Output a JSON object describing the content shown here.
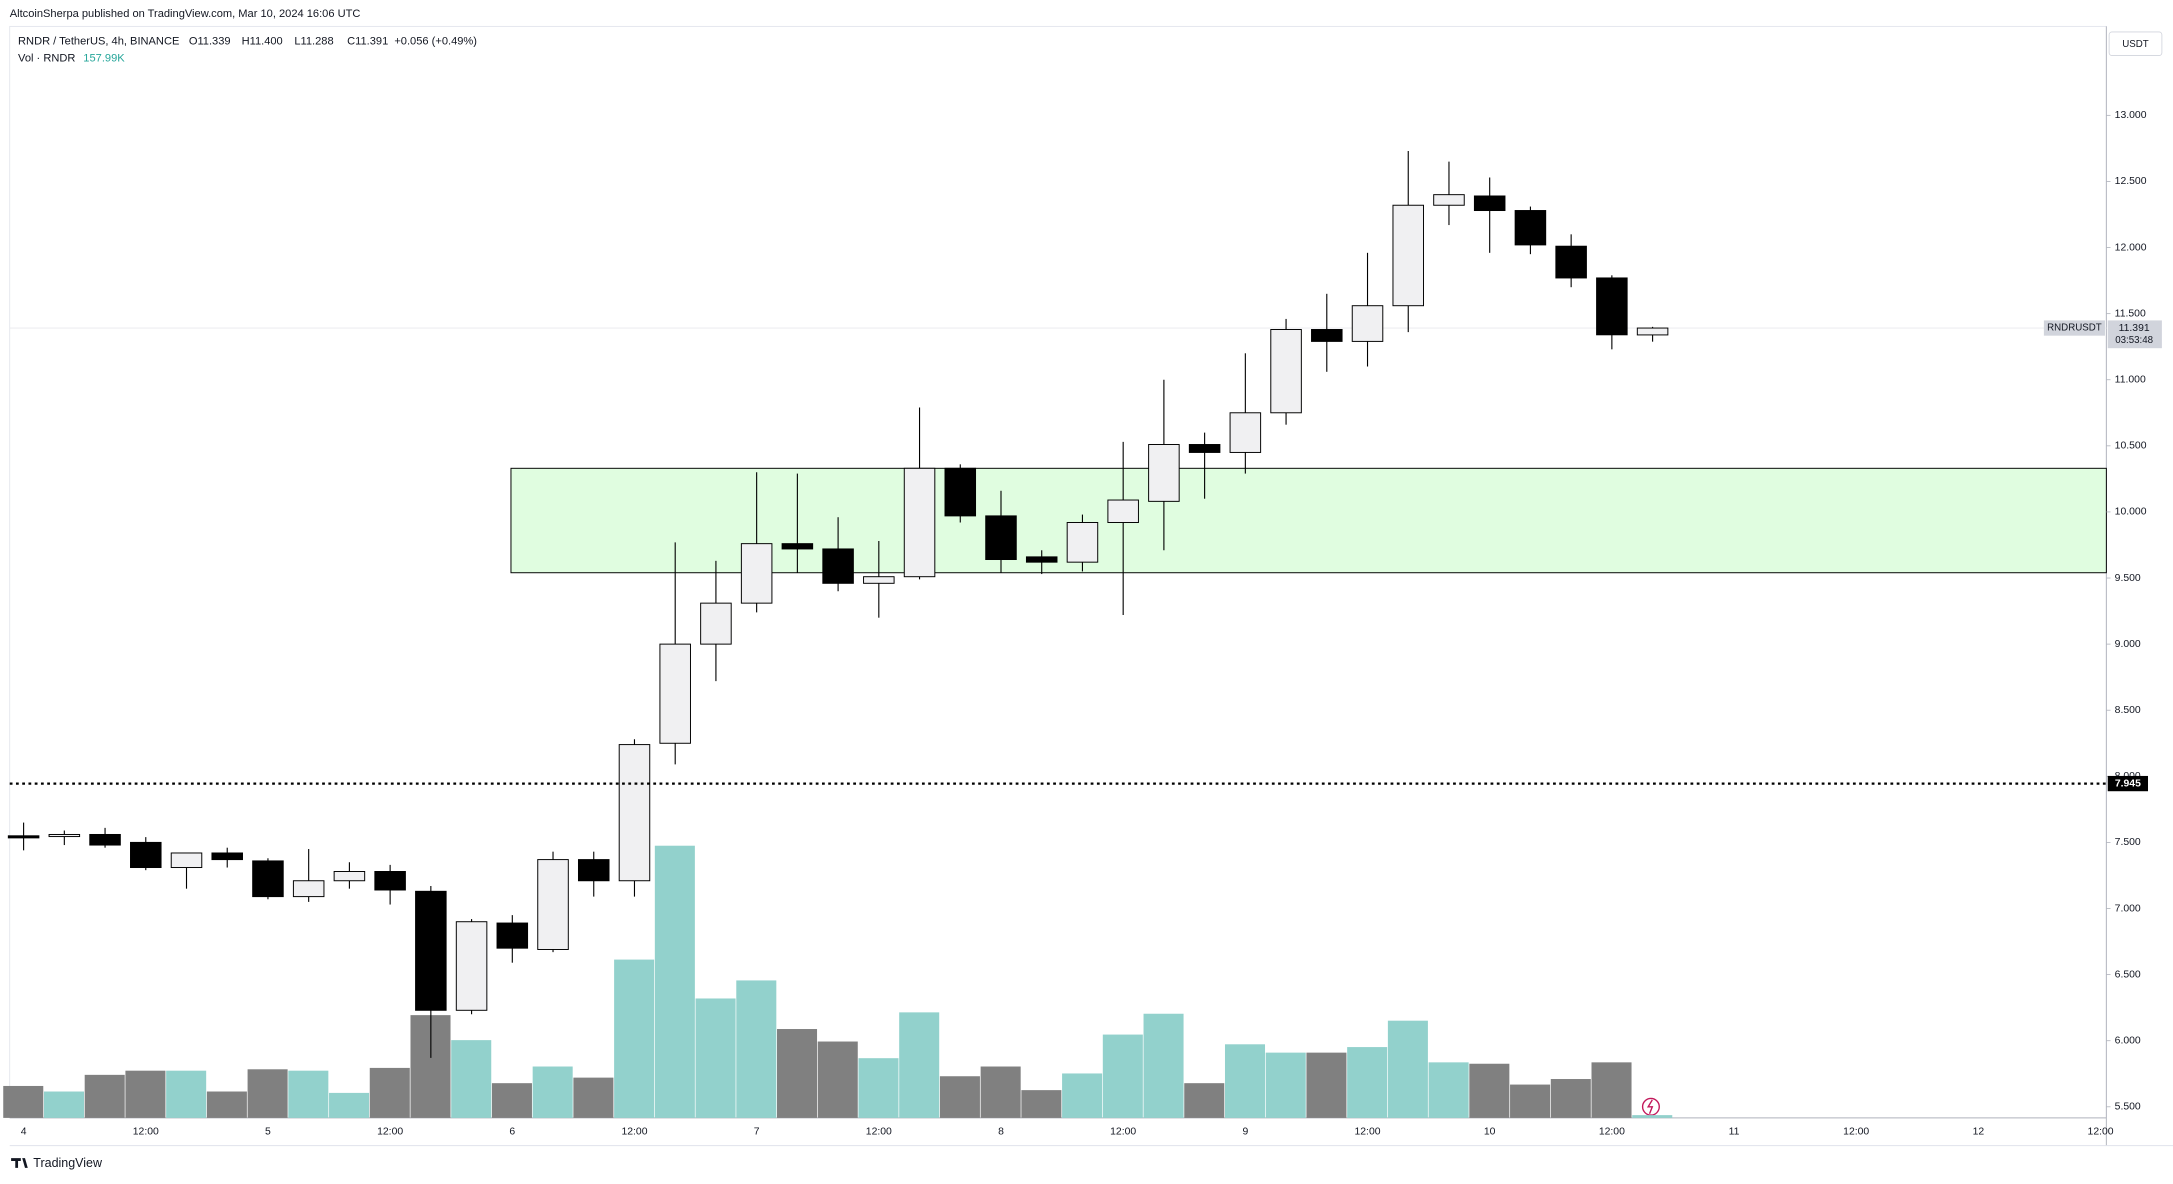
{
  "header": {
    "publisher": "AltcoinSherpa published on TradingView.com, Mar 10, 2024 16:06 UTC",
    "logo": "TradingView"
  },
  "chart_data": {
    "type": "candlestick",
    "legend": {
      "symbol": "RNDR / TetherUS, 4h, BINANCE",
      "open": "O11.339",
      "high": "H11.400",
      "low": "L11.288",
      "close": "C11.391",
      "change": "+0.056 (+0.49%)"
    },
    "volume_legend": {
      "name": "Vol · RNDR",
      "value": 157990,
      "label": "157.99K"
    },
    "currency": "USDT",
    "symbol_label": "RNDRUSDT",
    "last_price": {
      "value": 11.391,
      "label": "11.391"
    },
    "countdown": "03:53:48",
    "level": {
      "value": 7.945,
      "label": "7.945"
    },
    "zone": {
      "top": 10.33,
      "bottom": 9.54,
      "color": "#e0fde0"
    },
    "up_color": "#f0f0f2",
    "down_color": "#000000",
    "volume_up_color": "#92d1cc",
    "volume_down_color": "#808080",
    "categories": [
      "4",
      null,
      null,
      "12:00",
      null,
      null,
      "5",
      null,
      null,
      "12:00",
      null,
      null,
      "6",
      null,
      null,
      "12:00",
      null,
      null,
      "7",
      null,
      null,
      "12:00",
      null,
      null,
      "8",
      null,
      null,
      "12:00",
      null,
      null,
      "9",
      null,
      null,
      "12:00",
      null,
      null,
      "10",
      null,
      null,
      "12:00",
      null,
      null,
      "11",
      null,
      null,
      "12:00",
      null,
      null,
      "12",
      null,
      null,
      "12:00"
    ],
    "open": [
      7.55,
      7.55,
      7.56,
      7.5,
      7.31,
      7.42,
      7.36,
      7.09,
      7.21,
      7.28,
      7.13,
      6.23,
      6.89,
      6.69,
      7.37,
      7.21,
      8.25,
      9.0,
      9.31,
      9.76,
      9.72,
      9.46,
      9.51,
      10.33,
      9.97,
      9.66,
      9.62,
      9.92,
      10.08,
      10.51,
      10.45,
      10.75,
      11.38,
      11.29,
      11.56,
      12.32,
      12.39,
      12.28,
      12.01,
      11.77,
      11.339,
      null,
      null,
      null,
      null,
      null,
      null,
      null,
      null,
      null,
      null,
      null
    ],
    "high": [
      7.65,
      7.59,
      7.61,
      7.54,
      7.42,
      7.46,
      7.38,
      7.45,
      7.35,
      7.33,
      7.17,
      6.92,
      6.95,
      7.43,
      7.43,
      8.28,
      9.77,
      9.63,
      10.3,
      10.29,
      9.96,
      9.78,
      10.79,
      10.36,
      10.16,
      9.71,
      9.98,
      10.53,
      11.0,
      10.6,
      11.2,
      11.46,
      11.65,
      11.96,
      12.73,
      12.65,
      12.53,
      12.31,
      12.1,
      11.79,
      11.4,
      null,
      null,
      null,
      null,
      null,
      null,
      null,
      null,
      null,
      null,
      null
    ],
    "low": [
      7.44,
      7.48,
      7.46,
      7.29,
      7.15,
      7.31,
      7.07,
      7.05,
      7.15,
      7.03,
      5.87,
      6.2,
      6.59,
      6.67,
      7.09,
      7.09,
      8.09,
      8.72,
      9.24,
      9.54,
      9.4,
      9.2,
      9.49,
      9.92,
      9.54,
      9.53,
      9.55,
      9.22,
      9.71,
      10.1,
      10.29,
      10.66,
      11.06,
      11.1,
      11.36,
      12.17,
      11.96,
      11.95,
      11.7,
      11.23,
      11.288,
      null,
      null,
      null,
      null,
      null,
      null,
      null,
      null,
      null,
      null,
      null
    ],
    "close": [
      7.54,
      7.56,
      7.48,
      7.31,
      7.42,
      7.37,
      7.09,
      7.21,
      7.28,
      7.14,
      6.23,
      6.9,
      6.7,
      7.37,
      7.21,
      8.24,
      9.0,
      9.31,
      9.76,
      9.72,
      9.46,
      9.51,
      10.33,
      9.97,
      9.64,
      9.62,
      9.92,
      10.09,
      10.51,
      10.45,
      10.75,
      11.38,
      11.29,
      11.56,
      12.32,
      12.4,
      12.28,
      12.02,
      11.77,
      11.34,
      11.391,
      null,
      null,
      null,
      null,
      null,
      null,
      null,
      null,
      null,
      null,
      null
    ],
    "volume": [
      1817000,
      1501000,
      2449000,
      2686000,
      2686000,
      1501000,
      2765000,
      2686000,
      1422000,
      2844000,
      5846000,
      4424000,
      1975000,
      2923000,
      2291000,
      9006000,
      15484000,
      6794000,
      7821000,
      5056000,
      4345000,
      3397000,
      6004000,
      2370000,
      2923000,
      1580000,
      2528000,
      4740000,
      5925000,
      1975000,
      4187000,
      3713000,
      3713000,
      4029000,
      5530000,
      3160000,
      3081000,
      1896000,
      2212000,
      3160000,
      157990,
      null,
      null,
      null,
      null,
      null,
      null,
      null,
      null,
      null,
      null,
      null
    ],
    "ylim": [
      5.416,
      13.673
    ],
    "yticks": [
      {
        "value": 5.5,
        "label": "5.500"
      },
      {
        "value": 6,
        "label": "6.000"
      },
      {
        "value": 6.5,
        "label": "6.500"
      },
      {
        "value": 7,
        "label": "7.000"
      },
      {
        "value": 7.5,
        "label": "7.500"
      },
      {
        "value": 8,
        "label": "8.000"
      },
      {
        "value": 8.5,
        "label": "8.500"
      },
      {
        "value": 9,
        "label": "9.000"
      },
      {
        "value": 9.5,
        "label": "9.500"
      },
      {
        "value": 10,
        "label": "10.000"
      },
      {
        "value": 10.5,
        "label": "10.500"
      },
      {
        "value": 11,
        "label": "11.000"
      },
      {
        "value": 11.5,
        "label": "11.500"
      },
      {
        "value": 12,
        "label": "12.000"
      },
      {
        "value": 12.5,
        "label": "12.500"
      },
      {
        "value": 13,
        "label": "13.000"
      }
    ],
    "grid": false
  }
}
